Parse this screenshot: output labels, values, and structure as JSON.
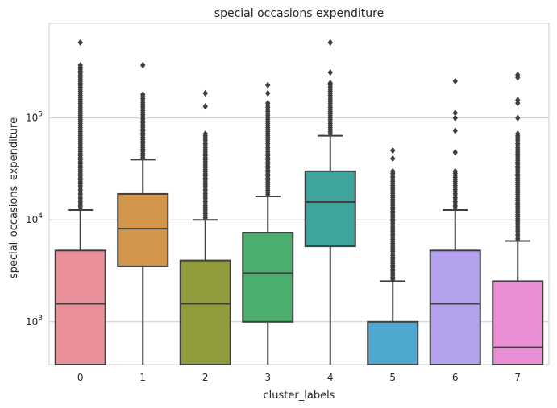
{
  "chart_data": {
    "type": "box",
    "title": "special occasions expenditure",
    "xlabel": "cluster_labels",
    "ylabel": "special_occasions_expenditure",
    "yscale": "log",
    "ylim": [
      380,
      850000
    ],
    "grid": "horizontal",
    "y_ticks": [
      {
        "value": 1000,
        "base": "10",
        "exp": "3"
      },
      {
        "value": 10000,
        "base": "10",
        "exp": "4"
      },
      {
        "value": 100000,
        "base": "10",
        "exp": "5"
      }
    ],
    "categories": [
      "0",
      "1",
      "2",
      "3",
      "4",
      "5",
      "6",
      "7"
    ],
    "boxes": [
      {
        "label": "0",
        "color": "#ea909a",
        "q1": 380,
        "median": 1500,
        "q3": 5000,
        "whisker_low": 380,
        "whisker_high": 12500,
        "outlier_max": 330000,
        "extreme_outliers": [
          550000
        ]
      },
      {
        "label": "1",
        "color": "#d2964c",
        "q1": 3500,
        "median": 8200,
        "q3": 18000,
        "whisker_low": 380,
        "whisker_high": 39000,
        "outlier_max": 170000,
        "extreme_outliers": [
          330000
        ]
      },
      {
        "label": "2",
        "color": "#939c3c",
        "q1": 380,
        "median": 1500,
        "q3": 4000,
        "whisker_low": 380,
        "whisker_high": 10000,
        "outlier_max": 70000,
        "extreme_outliers": [
          130000,
          175000
        ]
      },
      {
        "label": "3",
        "color": "#4cae6e",
        "q1": 1000,
        "median": 3000,
        "q3": 7500,
        "whisker_low": 380,
        "whisker_high": 17000,
        "outlier_max": 140000,
        "extreme_outliers": [
          175000,
          210000
        ]
      },
      {
        "label": "4",
        "color": "#3fa49c",
        "q1": 5500,
        "median": 15000,
        "q3": 30000,
        "whisker_low": 380,
        "whisker_high": 67000,
        "outlier_max": 220000,
        "extreme_outliers": [
          280000,
          550000
        ]
      },
      {
        "label": "5",
        "color": "#4fa8cf",
        "q1": 380,
        "median": 380,
        "q3": 1000,
        "whisker_low": 380,
        "whisker_high": 2500,
        "outlier_max": 30000,
        "extreme_outliers": [
          40000,
          48000
        ]
      },
      {
        "label": "6",
        "color": "#b4a2ee",
        "q1": 380,
        "median": 1500,
        "q3": 5000,
        "whisker_low": 380,
        "whisker_high": 12500,
        "outlier_max": 30000,
        "extreme_outliers": [
          46000,
          75000,
          100000,
          112000,
          230000
        ]
      },
      {
        "label": "7",
        "color": "#ea8ed6",
        "q1": 380,
        "median": 560,
        "q3": 2500,
        "whisker_low": 380,
        "whisker_high": 6200,
        "outlier_max": 70000,
        "extreme_outliers": [
          100000,
          140000,
          150000,
          250000,
          265000
        ]
      }
    ]
  }
}
